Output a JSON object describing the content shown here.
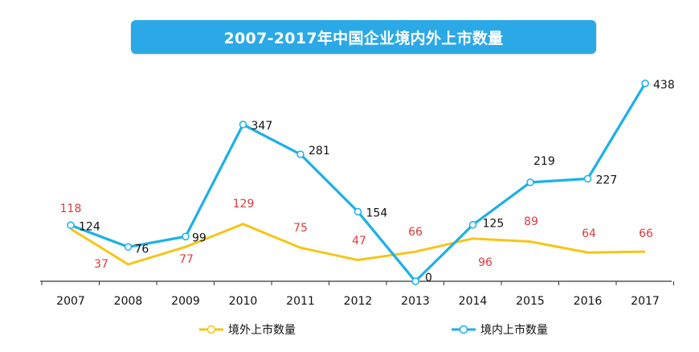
{
  "chart_data": {
    "type": "line",
    "title": "2007-2017年中国企业境内外上市数量",
    "categories": [
      "2007",
      "2008",
      "2009",
      "2010",
      "2011",
      "2012",
      "2013",
      "2014",
      "2015",
      "2016",
      "2017"
    ],
    "series": [
      {
        "name": "境外上市数量",
        "color": "#f5c518",
        "values": [
          118,
          37,
          77,
          129,
          75,
          47,
          66,
          96,
          89,
          64,
          66
        ],
        "label_color": "#e03b3b"
      },
      {
        "name": "境内上市数量",
        "color": "#1cb0e8",
        "values": [
          124,
          76,
          99,
          347,
          281,
          154,
          0,
          125,
          219,
          227,
          438
        ],
        "label_color": "#111111"
      }
    ],
    "legend_position": "bottom",
    "grid": false
  }
}
